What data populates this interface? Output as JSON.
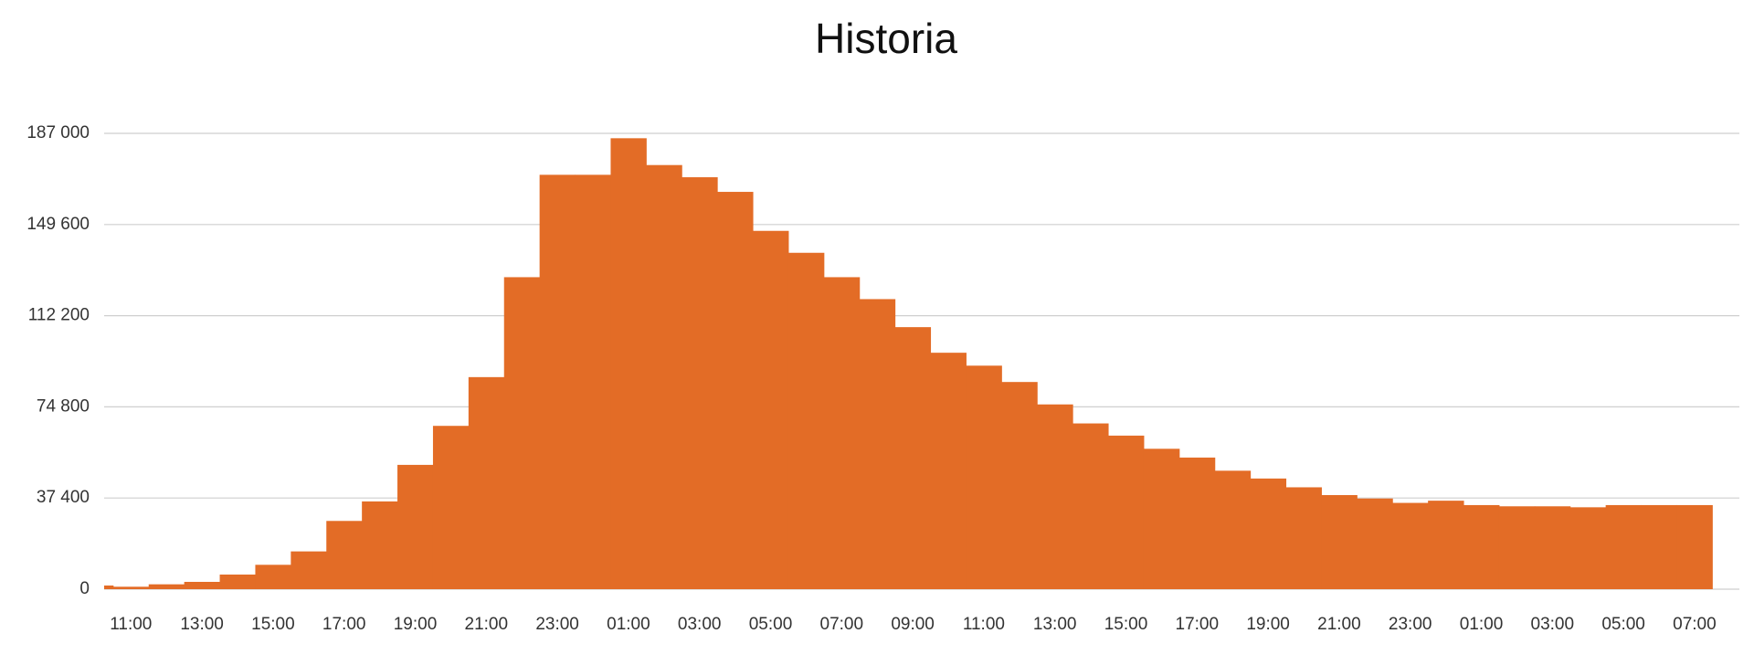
{
  "chart_data": {
    "type": "bar",
    "title": "Historia",
    "categories": [
      null,
      "11:00",
      null,
      "13:00",
      null,
      "15:00",
      null,
      "17:00",
      null,
      "19:00",
      null,
      "21:00",
      null,
      "23:00",
      null,
      "01:00",
      null,
      "03:00",
      null,
      "05:00",
      null,
      "07:00",
      null,
      "09:00",
      null,
      "11:00",
      null,
      "13:00",
      null,
      "15:00",
      null,
      "17:00",
      null,
      "19:00",
      null,
      "21:00",
      null,
      "23:00",
      null,
      "01:00",
      null,
      "03:00",
      null,
      "05:00",
      null,
      "07:00"
    ],
    "values": [
      1500,
      1000,
      2000,
      3000,
      6000,
      10000,
      15500,
      28000,
      36000,
      51000,
      67000,
      87000,
      128000,
      170000,
      170000,
      185000,
      174000,
      169000,
      163000,
      147000,
      138000,
      128000,
      119000,
      107500,
      97000,
      91700,
      85000,
      75800,
      68000,
      63000,
      57600,
      54000,
      48600,
      45400,
      41800,
      38600,
      37200,
      35400,
      36300,
      34500,
      34000,
      34000,
      33600,
      34500,
      34500,
      34500
    ],
    "color": "#e36c26",
    "ylim": [
      0,
      187000
    ],
    "yticks": [
      0,
      {
        "value": 37400,
        "label": "37 400"
      },
      {
        "value": 74800,
        "label": "74 800"
      },
      {
        "value": 112200,
        "label": "112 200"
      },
      {
        "value": 149600,
        "label": "149 600"
      },
      {
        "value": 187000,
        "label": "187 000"
      }
    ],
    "grid": true
  }
}
